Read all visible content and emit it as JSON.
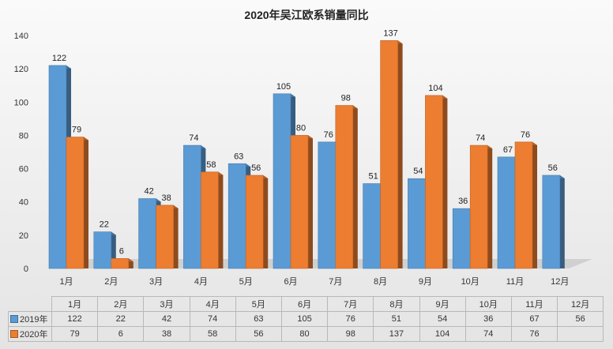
{
  "chart_data": {
    "type": "bar",
    "title": "2020年吴江欧系销量同比",
    "categories": [
      "1月",
      "2月",
      "3月",
      "4月",
      "5月",
      "6月",
      "7月",
      "8月",
      "9月",
      "10月",
      "11月",
      "12月"
    ],
    "series": [
      {
        "name": "2019年",
        "color": "#5b9bd5",
        "values": [
          122,
          22,
          42,
          74,
          63,
          105,
          76,
          51,
          54,
          36,
          67,
          56
        ]
      },
      {
        "name": "2020年",
        "color": "#ed7d31",
        "values": [
          79,
          6,
          38,
          58,
          56,
          80,
          98,
          137,
          104,
          74,
          76,
          null
        ]
      }
    ],
    "ylim": [
      0,
      140
    ],
    "yticks": [
      0,
      20,
      40,
      60,
      80,
      100,
      120,
      140
    ],
    "grid": false,
    "legend": "data-table"
  }
}
